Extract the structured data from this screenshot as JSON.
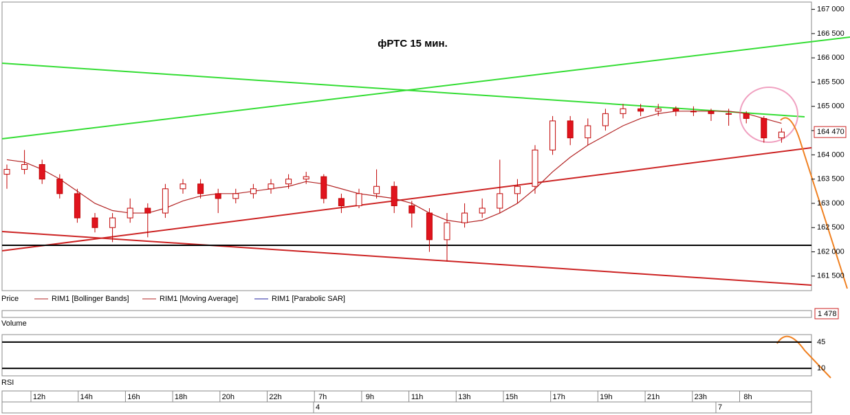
{
  "chart_data": {
    "type": "candlestick",
    "title": "фРТС   15 мин.",
    "open": [
      163600,
      163700,
      163800,
      163500,
      163200,
      162700,
      162500,
      162700,
      162900,
      162800,
      163300,
      163400,
      163200,
      163100,
      163200,
      163300,
      163400,
      163500,
      163550,
      163100,
      162950,
      163200,
      163350,
      162950,
      162800,
      162250,
      162600,
      162800,
      162900,
      163200,
      163350,
      164100,
      164700,
      164350,
      164600,
      164850,
      164950,
      164900,
      164950,
      164900,
      164900,
      164850,
      164850,
      164750,
      164350
    ],
    "high": [
      163800,
      164100,
      163900,
      163600,
      163300,
      162800,
      162800,
      163100,
      163000,
      163400,
      163500,
      163500,
      163300,
      163300,
      163400,
      163500,
      163600,
      163650,
      163600,
      163200,
      163300,
      163700,
      163450,
      163050,
      162900,
      162800,
      163000,
      163100,
      163900,
      163500,
      164200,
      164800,
      164800,
      164750,
      164950,
      165050,
      165050,
      165050,
      165000,
      165000,
      164950,
      164950,
      164900,
      164800,
      164550
    ],
    "low": [
      163300,
      163600,
      163400,
      163100,
      162600,
      162400,
      162200,
      162600,
      162300,
      162700,
      163200,
      163100,
      162800,
      163000,
      163100,
      163200,
      163300,
      163400,
      163000,
      162800,
      162900,
      163100,
      162800,
      162500,
      162000,
      161800,
      162500,
      162700,
      162800,
      163000,
      163200,
      164000,
      164200,
      164200,
      164500,
      164750,
      164800,
      164800,
      164800,
      164800,
      164700,
      164600,
      164650,
      164250,
      164250
    ],
    "close": [
      163700,
      163800,
      163500,
      163200,
      162700,
      162500,
      162700,
      162900,
      162800,
      163300,
      163400,
      163200,
      163100,
      163200,
      163300,
      163400,
      163500,
      163550,
      163100,
      162950,
      163200,
      163350,
      162950,
      162800,
      162250,
      162600,
      162800,
      162900,
      163200,
      163350,
      164100,
      164700,
      164350,
      164600,
      164850,
      164950,
      164900,
      164950,
      164900,
      164900,
      164850,
      164850,
      164750,
      164350,
      164470
    ],
    "moving_average": {
      "color": "#b22222",
      "values": [
        163900,
        163850,
        163700,
        163500,
        163250,
        163000,
        162850,
        162800,
        162800,
        162900,
        163050,
        163150,
        163200,
        163200,
        163250,
        163300,
        163350,
        163450,
        163400,
        163300,
        163200,
        163150,
        163100,
        163000,
        162800,
        162650,
        162600,
        162650,
        162800,
        163000,
        163300,
        163650,
        163950,
        164200,
        164400,
        164600,
        164750,
        164850,
        164900,
        164900,
        164900,
        164900,
        164850,
        164750,
        164650
      ]
    },
    "up_color": "#ffffff",
    "down_color": "#e0141e",
    "edge_color": "#c00000",
    "ylim": [
      161200,
      167150
    ],
    "yticks": [
      {
        "value": 167000,
        "label": "167 000"
      },
      {
        "value": 166500,
        "label": "166 500"
      },
      {
        "value": 166000,
        "label": "166 000"
      },
      {
        "value": 165500,
        "label": "165 500"
      },
      {
        "value": 165000,
        "label": "165 000"
      },
      {
        "value": 164500,
        "label": "164 500"
      },
      {
        "value": 164000,
        "label": "164 000"
      },
      {
        "value": 163500,
        "label": "163 500"
      },
      {
        "value": 163000,
        "label": "163 000"
      },
      {
        "value": 162500,
        "label": "162 500"
      },
      {
        "value": 162000,
        "label": "162 000"
      },
      {
        "value": 161500,
        "label": "161 500"
      }
    ],
    "last_price": {
      "value": 164470,
      "label": "164 470"
    },
    "legend": [
      "Price",
      "RIM1 [Bollinger Bands]",
      "RIM1 [Moving Average]",
      "RIM1 [Parabolic SAR]"
    ],
    "volume": {
      "label": "Volume",
      "last": {
        "value": 1478,
        "label": "1 478"
      }
    },
    "rsi": {
      "label": "RSI",
      "ylim": [
        0,
        55
      ],
      "yticks": [
        45,
        10
      ]
    },
    "time_labels": [
      "12h",
      "14h",
      "16h",
      "18h",
      "20h",
      "22h",
      "7h",
      "9h",
      "11h",
      "13h",
      "15h",
      "17h",
      "19h",
      "21h",
      "23h",
      "8h"
    ],
    "date_labels": [
      "4",
      "7"
    ]
  }
}
